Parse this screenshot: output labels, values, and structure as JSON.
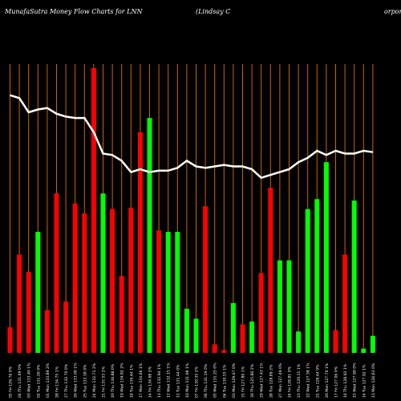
{
  "header": {
    "title_left": "MunafaSutra  Money Flow  Charts for LNN",
    "title_mid": "(Lindsay C",
    "title_right": "orpora"
  },
  "chart_data": {
    "type": "bar",
    "title": "MunafaSutra Money Flow Charts for LNN (Lindsay Corporation)",
    "colors": {
      "up": "#00ff00",
      "down": "#ff0000",
      "line": "#ffffff",
      "grid": "#cc6600",
      "background": "#000000"
    },
    "ylim": [
      0,
      100
    ],
    "categories": [
      "05 Fri 129.76 0%",
      "04 Thu 131.69 0%",
      "03 Wed 133.40 1%",
      "02 Tue 131.26 0%",
      "01 Mon 133.89 2%",
      "28 Fri 134.75 1%",
      "27 Thu 132.70 0%",
      "26 Wed 133.00 1%",
      "25 Tue 133.18 0%",
      "24 Mon 132.71 2%",
      "21 Fri 135.53 2%",
      "20 Thu 136.88 0%",
      "19 Wed 134.82 2%",
      "18 Tue 136.44 1%",
      "17 Mon 134.66 1%",
      "14 Fri 134.68 2%",
      "13 Thu 132.94 1%",
      "12 Wed 132.15 1%",
      "11 Tue 131.44 0%",
      "10 Mon 131.98 1%",
      "07 Fri 130.35 2%",
      "06 Thu 131.19 0%",
      "05 Wed 131.25 0%",
      "04 Tue 130.55 1%",
      "03 Mon 129.47 0%",
      "31 Fri 127.80 1%",
      "30 Thu 125.80 2%",
      "29 Wed 127.43 1%",
      "28 Tue 128.89 2%",
      "27 Mon 127.49 0%",
      "24 Fri 128.81 0%",
      "23 Thu 129.11 1%",
      "22 Wed 127.58 1%",
      "21 Tue 128.44 0%",
      "20 Mon 127.70 1%",
      "17 Fri 127.06 0%",
      "16 Thu 128.92 1%",
      "15 Wed 127.99 0%",
      "14 Tue 127.92 1%",
      "13 Mon 126.63 0%"
    ],
    "values": [
      9,
      34.5,
      28.5,
      42.5,
      15,
      56,
      18,
      52.5,
      49,
      100,
      56,
      50.5,
      27,
      51,
      77.5,
      82.5,
      43,
      42.5,
      42.5,
      15.5,
      12,
      51.5,
      3,
      1,
      17.5,
      10,
      11,
      28,
      58,
      32.5,
      32.5,
      7.5,
      50.5,
      54,
      67,
      8,
      34.5,
      53.5,
      1.5,
      6
    ],
    "directions": [
      "down",
      "down",
      "down",
      "up",
      "down",
      "down",
      "down",
      "down",
      "down",
      "down",
      "up",
      "down",
      "down",
      "down",
      "down",
      "up",
      "down",
      "up",
      "up",
      "up",
      "up",
      "down",
      "down",
      "down",
      "up",
      "down",
      "up",
      "down",
      "down",
      "up",
      "up",
      "up",
      "up",
      "up",
      "up",
      "down",
      "down",
      "up",
      "up",
      "up"
    ],
    "line": [
      90.5,
      89.5,
      84.5,
      85.5,
      86,
      84,
      83,
      82.5,
      82.5,
      77.5,
      70,
      69.5,
      67.5,
      63.5,
      64.5,
      63.5,
      64,
      64,
      65,
      67.5,
      65.5,
      65,
      65.5,
      66,
      65.5,
      65.5,
      64.5,
      61.5,
      62.5,
      63.5,
      64.5,
      67,
      68.5,
      71,
      69.5,
      71,
      70,
      70,
      71,
      70.5
    ]
  }
}
